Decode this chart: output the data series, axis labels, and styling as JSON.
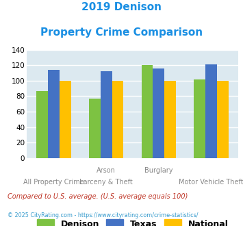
{
  "title_line1": "2019 Denison",
  "title_line2": "Property Crime Comparison",
  "title_color": "#1a8fe3",
  "denison": [
    87,
    77,
    120,
    102
  ],
  "texas": [
    114,
    112,
    116,
    121
  ],
  "national": [
    100,
    100,
    100,
    100
  ],
  "denison_color": "#7dc242",
  "texas_color": "#4472c4",
  "national_color": "#ffc000",
  "ylim": [
    0,
    140
  ],
  "yticks": [
    0,
    20,
    40,
    60,
    80,
    100,
    120,
    140
  ],
  "plot_bg": "#dce9f0",
  "grid_color": "#ffffff",
  "top_labels": [
    "",
    "Arson",
    "Burglary",
    ""
  ],
  "bottom_labels": [
    "All Property Crime",
    "Larceny & Theft",
    "",
    "Motor Vehicle Theft"
  ],
  "footnote1": "Compared to U.S. average. (U.S. average equals 100)",
  "footnote1_color": "#c0392b",
  "footnote2": "© 2025 CityRating.com - https://www.cityrating.com/crime-statistics/",
  "footnote2_color": "#3399cc",
  "legend_labels": [
    "Denison",
    "Texas",
    "National"
  ],
  "bar_width": 0.22,
  "group_positions": [
    0,
    1,
    2,
    3
  ]
}
